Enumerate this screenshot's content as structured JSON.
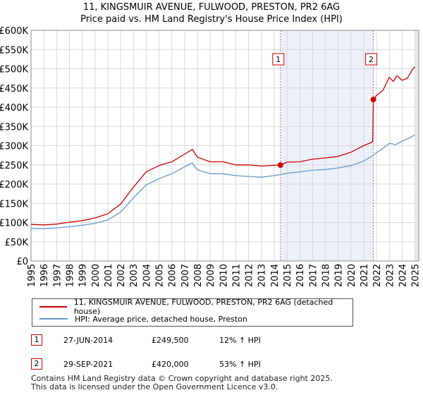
{
  "title_line1": "11, KINGSMUIR AVENUE, FULWOOD, PRESTON, PR2 6AG",
  "title_line2": "Price paid vs. HM Land Registry's House Price Index (HPI)",
  "colors": {
    "red": "#cc0000",
    "blue": "#6699cc",
    "shade": "#dde6f5",
    "grid": "#d9d9d9"
  },
  "chart_data": {
    "type": "line",
    "title": "11, KINGSMUIR AVENUE, FULWOOD, PRESTON, PR2 6AG — Price paid vs. HM Land Registry's House Price Index (HPI)",
    "xlim": [
      1995,
      2025.3
    ],
    "ylim": [
      0,
      600000
    ],
    "x_ticks": [
      1995,
      1996,
      1997,
      1998,
      1999,
      2000,
      2001,
      2002,
      2003,
      2004,
      2005,
      2006,
      2007,
      2008,
      2009,
      2010,
      2011,
      2012,
      2013,
      2014,
      2015,
      2016,
      2017,
      2018,
      2019,
      2020,
      2021,
      2022,
      2023,
      2024,
      2025
    ],
    "y_ticks": [
      0,
      50000,
      100000,
      150000,
      200000,
      250000,
      300000,
      350000,
      400000,
      450000,
      500000,
      550000,
      600000
    ],
    "y_tick_labels": [
      "£0",
      "£50K",
      "£100K",
      "£150K",
      "£200K",
      "£250K",
      "£300K",
      "£350K",
      "£400K",
      "£450K",
      "£500K",
      "£550K",
      "£600K"
    ],
    "shaded_range": [
      2014.49,
      2021.75
    ],
    "series": [
      {
        "name": "11, KINGSMUIR AVENUE, FULWOOD, PRESTON, PR2 6AG (detached house)",
        "color": "#cc0000",
        "x": [
          1995,
          1996,
          1997,
          1998,
          1999,
          2000,
          2001,
          2002,
          2003,
          2004,
          2005,
          2006,
          2007,
          2007.6,
          2008,
          2009,
          2010,
          2011,
          2012,
          2013,
          2014,
          2014.49,
          2015,
          2016,
          2017,
          2018,
          2019,
          2020,
          2021,
          2021.7,
          2021.75,
          2022,
          2022.5,
          2023,
          2023.3,
          2023.6,
          2024,
          2024.4,
          2024.8,
          2025
        ],
        "y": [
          95000,
          94000,
          96000,
          101000,
          105000,
          112000,
          123000,
          148000,
          192000,
          232000,
          248000,
          258000,
          278000,
          290000,
          270000,
          258000,
          258000,
          250000,
          250000,
          247000,
          249000,
          249500,
          257000,
          258000,
          265000,
          268000,
          272000,
          283000,
          300000,
          310000,
          420000,
          431000,
          444000,
          478000,
          467000,
          482000,
          470000,
          475000,
          498000,
          505000
        ]
      },
      {
        "name": "HPI: Average price, detached house, Preston",
        "color": "#6699cc",
        "x": [
          1995,
          1996,
          1997,
          1998,
          1999,
          2000,
          2001,
          2002,
          2003,
          2004,
          2005,
          2006,
          2007,
          2007.6,
          2008,
          2009,
          2010,
          2011,
          2012,
          2013,
          2014,
          2015,
          2016,
          2017,
          2018,
          2019,
          2020,
          2021,
          2021.75,
          2022,
          2022.5,
          2023,
          2023.5,
          2024,
          2024.5,
          2025
        ],
        "y": [
          85000,
          84000,
          86000,
          89000,
          93000,
          98000,
          107000,
          127000,
          164000,
          198000,
          214000,
          227000,
          245000,
          255000,
          237000,
          227000,
          227000,
          222000,
          220000,
          218000,
          222000,
          228000,
          232000,
          236000,
          238000,
          242000,
          248000,
          260000,
          275000,
          282000,
          293000,
          306000,
          303000,
          312000,
          319000,
          328000
        ]
      }
    ],
    "annotations": [
      {
        "label": "1",
        "x": 2014.49,
        "y": 249500
      },
      {
        "label": "2",
        "x": 2021.75,
        "y": 420000
      }
    ],
    "legend_position": "below"
  },
  "legend": {
    "items": [
      {
        "label": "11, KINGSMUIR AVENUE, FULWOOD, PRESTON, PR2 6AG (detached house)"
      },
      {
        "label": "HPI: Average price, detached house, Preston"
      }
    ]
  },
  "transactions": [
    {
      "num": "1",
      "date": "27-JUN-2014",
      "price": "£249,500",
      "hpi": "12% ↑ HPI"
    },
    {
      "num": "2",
      "date": "29-SEP-2021",
      "price": "£420,000",
      "hpi": "53% ↑ HPI"
    }
  ],
  "footer": {
    "line1": "Contains HM Land Registry data © Crown copyright and database right 2025.",
    "line2": "This data is licensed under the Open Government Licence v3.0."
  }
}
